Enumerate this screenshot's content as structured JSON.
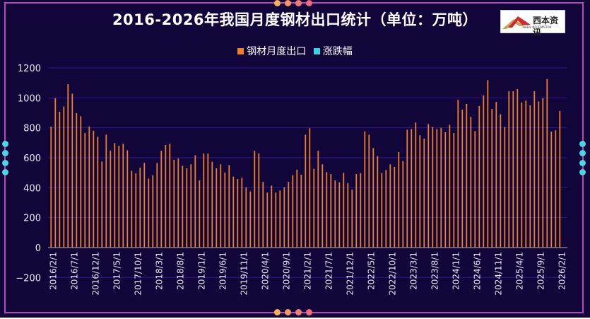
{
  "chart_data": {
    "type": "bar",
    "title": "2016-2026年我国月度钢材出口统计（单位：万吨）",
    "legend": [
      {
        "name": "钢材月度出口",
        "color": "#f07f2a"
      },
      {
        "name": "涨跌幅",
        "color": "#3fd0e0"
      }
    ],
    "legend_position": "top-center",
    "ylim": [
      -200,
      1200
    ],
    "yticks": [
      "1200",
      "1000",
      "800",
      "600",
      "400",
      "200",
      "0",
      "−200"
    ],
    "ytick_values": [
      1200,
      1000,
      800,
      600,
      400,
      200,
      0,
      -200
    ],
    "grid": true,
    "x_start": "2016/2/1",
    "xticks": [
      "2016/2/1",
      "2016/7/1",
      "2016/12/1",
      "2017/5/1",
      "2017/10/1",
      "2018/3/1",
      "2018/8/1",
      "2019/1/1",
      "2019/6/1",
      "2019/11/1",
      "2020/4/1",
      "2020/9/1",
      "2021/2/1",
      "2021/7/1",
      "2021/12/1",
      "2022/5/1",
      "2022/10/1",
      "2023/3/1",
      "2023/8/1",
      "2024/1/1",
      "2024/6/1",
      "2024/11/1",
      "2025/4/1",
      "2025/9/1",
      "2026/2/1"
    ],
    "xtick_every": 5,
    "series": [
      {
        "name": "钢材月度出口",
        "values": [
          808,
          998,
          907,
          942,
          1091,
          1028,
          898,
          877,
          765,
          808,
          780,
          740,
          575,
          754,
          647,
          698,
          680,
          693,
          650,
          513,
          496,
          534,
          565,
          461,
          483,
          565,
          646,
          685,
          693,
          586,
          595,
          546,
          529,
          556,
          616,
          449,
          628,
          628,
          573,
          529,
          556,
          501,
          551,
          474,
          458,
          466,
          402,
          375,
          646,
          628,
          439,
          367,
          414,
          367,
          381,
          402,
          439,
          483,
          521,
          487,
          754,
          797,
          526,
          646,
          556,
          504,
          491,
          449,
          436,
          499,
          431,
          387,
          491,
          496,
          775,
          754,
          665,
          611,
          496,
          518,
          556,
          539,
          638,
          578,
          787,
          792,
          835,
          750,
          728,
          825,
          805,
          792,
          800,
          770,
          820,
          765,
          986,
          921,
          959,
          874,
          778,
          945,
          1016,
          1118,
          926,
          973,
          891,
          805,
          1044,
          1044,
          1058,
          969,
          981,
          950,
          1044,
          976,
          998,
          1126,
          775,
          783,
          912
        ]
      }
    ]
  },
  "logo": {
    "name": "西本资讯",
    "sub": "XIBEN INFORMATION"
  }
}
